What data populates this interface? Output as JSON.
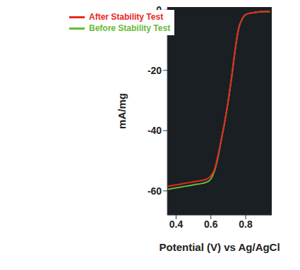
{
  "chart_data": {
    "type": "line",
    "x_label": "Potential (V) vs Ag/AgCl",
    "y_label": "mA/mg",
    "x": [
      0.35,
      0.4,
      0.45,
      0.5,
      0.55,
      0.58,
      0.6,
      0.62,
      0.64,
      0.66,
      0.68,
      0.7,
      0.72,
      0.74,
      0.76,
      0.78,
      0.8,
      0.85,
      0.9,
      0.94
    ],
    "series": [
      {
        "name": "Before Stability Test",
        "color": "#66bb33",
        "values": [
          -59.5,
          -59,
          -58.5,
          -58,
          -57.5,
          -57,
          -56,
          -53.5,
          -49,
          -43,
          -37,
          -30,
          -22,
          -13,
          -6,
          -3,
          -1.5,
          -0.8,
          -0.5,
          -0.5
        ]
      },
      {
        "name": "After Stability Test",
        "color": "#e8281e",
        "values": [
          -58.5,
          -58,
          -57.5,
          -57,
          -56.5,
          -56,
          -55,
          -53,
          -48.5,
          -43,
          -37,
          -30,
          -22,
          -13,
          -6,
          -3,
          -1.5,
          -0.8,
          -0.5,
          -0.5
        ]
      }
    ],
    "xlim": [
      0.35,
      0.95
    ],
    "ylim": [
      -68,
      1
    ],
    "xticks": [
      0.4,
      0.6,
      0.8
    ],
    "yticks": [
      0,
      -20,
      -40,
      -60
    ],
    "grid": false,
    "legend": "upper left"
  }
}
